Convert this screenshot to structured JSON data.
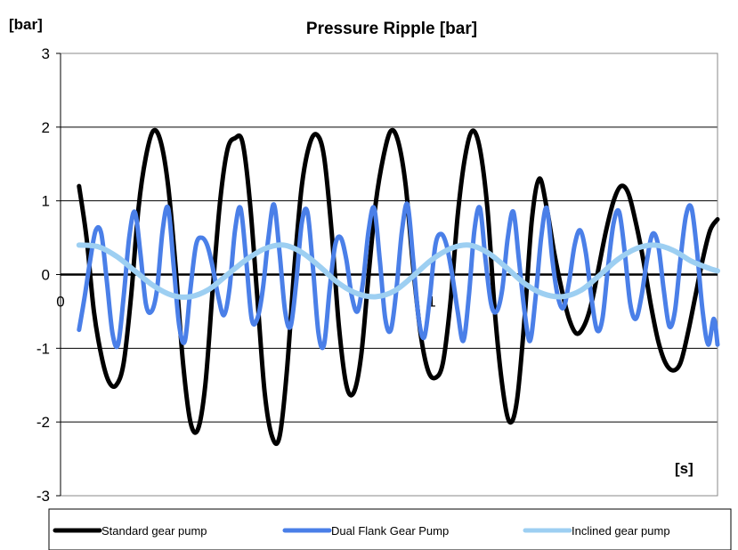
{
  "chart_data": {
    "type": "line",
    "title": "Pressure Ripple [bar]",
    "ylabel": "[bar]",
    "xlabel": "[s]",
    "ylim": [
      -3,
      3
    ],
    "xlim": [
      0,
      1.77
    ],
    "grid": true,
    "legend_placement": "bottom",
    "y_ticks": [
      "3",
      "2",
      "1",
      "0",
      "-1",
      "-2",
      "-3"
    ],
    "x_ticks": [
      {
        "value": 0,
        "label": "0"
      },
      {
        "value": 1,
        "label": "1"
      }
    ],
    "series": [
      {
        "name": "Standard gear pump",
        "color": "#000000",
        "x": [
          0.05,
          0.07,
          0.09,
          0.11,
          0.13,
          0.15,
          0.17,
          0.19,
          0.21,
          0.23,
          0.25,
          0.27,
          0.29,
          0.31,
          0.33,
          0.35,
          0.37,
          0.39,
          0.41,
          0.43,
          0.45,
          0.47,
          0.49,
          0.51,
          0.53,
          0.55,
          0.57,
          0.59,
          0.61,
          0.63,
          0.65,
          0.67,
          0.69,
          0.71,
          0.73,
          0.75,
          0.77,
          0.79,
          0.81,
          0.83,
          0.85,
          0.87,
          0.89,
          0.91,
          0.93,
          0.95,
          0.97,
          0.99,
          1.01,
          1.03,
          1.05,
          1.07,
          1.09,
          1.11,
          1.13,
          1.15,
          1.17,
          1.19,
          1.21,
          1.23,
          1.25,
          1.27,
          1.29,
          1.31,
          1.33,
          1.35,
          1.37,
          1.39,
          1.41,
          1.43,
          1.45,
          1.47,
          1.49,
          1.51,
          1.53,
          1.55,
          1.57,
          1.59,
          1.61,
          1.63,
          1.65,
          1.67,
          1.69,
          1.71,
          1.73,
          1.75,
          1.77
        ],
        "y": [
          1.2,
          0.5,
          -0.5,
          -1.1,
          -1.45,
          -1.5,
          -1.2,
          -0.3,
          0.9,
          1.6,
          1.95,
          1.8,
          1.2,
          0.1,
          -1.2,
          -2.0,
          -2.1,
          -1.5,
          -0.2,
          1.0,
          1.7,
          1.85,
          1.8,
          1.0,
          -0.3,
          -1.6,
          -2.2,
          -2.2,
          -1.3,
          0.1,
          1.2,
          1.75,
          1.9,
          1.6,
          0.6,
          -0.7,
          -1.5,
          -1.6,
          -1.1,
          0.0,
          1.0,
          1.6,
          1.95,
          1.8,
          1.2,
          0.1,
          -0.8,
          -1.3,
          -1.4,
          -1.2,
          -0.4,
          0.8,
          1.6,
          1.95,
          1.7,
          0.9,
          -0.5,
          -1.5,
          -2.0,
          -1.7,
          -0.6,
          0.75,
          1.3,
          0.9,
          0.3,
          -0.2,
          -0.6,
          -0.8,
          -0.7,
          -0.4,
          0.1,
          0.6,
          1.0,
          1.2,
          1.1,
          0.7,
          0.2,
          -0.4,
          -0.9,
          -1.2,
          -1.3,
          -1.2,
          -0.8,
          -0.3,
          0.2,
          0.6,
          0.75
        ]
      },
      {
        "name": "Dual Flank Gear Pump",
        "color": "#4a7fe8",
        "x": [
          0.05,
          0.065,
          0.08,
          0.095,
          0.11,
          0.125,
          0.14,
          0.155,
          0.17,
          0.185,
          0.2,
          0.215,
          0.23,
          0.245,
          0.26,
          0.275,
          0.29,
          0.305,
          0.32,
          0.335,
          0.35,
          0.365,
          0.38,
          0.395,
          0.41,
          0.425,
          0.44,
          0.455,
          0.47,
          0.485,
          0.5,
          0.515,
          0.53,
          0.545,
          0.56,
          0.575,
          0.59,
          0.605,
          0.62,
          0.635,
          0.65,
          0.665,
          0.68,
          0.695,
          0.71,
          0.725,
          0.74,
          0.755,
          0.77,
          0.785,
          0.8,
          0.815,
          0.83,
          0.845,
          0.86,
          0.875,
          0.89,
          0.905,
          0.92,
          0.935,
          0.95,
          0.965,
          0.98,
          0.995,
          1.01,
          1.025,
          1.04,
          1.055,
          1.07,
          1.085,
          1.1,
          1.115,
          1.13,
          1.145,
          1.16,
          1.175,
          1.19,
          1.205,
          1.22,
          1.235,
          1.25,
          1.265,
          1.28,
          1.295,
          1.31,
          1.325,
          1.34,
          1.355,
          1.37,
          1.385,
          1.4,
          1.415,
          1.43,
          1.445,
          1.46,
          1.475,
          1.49,
          1.505,
          1.52,
          1.535,
          1.55,
          1.565,
          1.58,
          1.595,
          1.61,
          1.625,
          1.64,
          1.655,
          1.67,
          1.685,
          1.7,
          1.715,
          1.73,
          1.745,
          1.76,
          1.77
        ],
        "y": [
          -0.75,
          -0.3,
          0.2,
          0.6,
          0.55,
          -0.1,
          -0.8,
          -0.95,
          -0.3,
          0.5,
          0.85,
          0.3,
          -0.4,
          -0.5,
          -0.2,
          0.6,
          0.9,
          0.1,
          -0.7,
          -0.9,
          -0.2,
          0.4,
          0.5,
          0.4,
          0.1,
          -0.3,
          -0.55,
          -0.2,
          0.6,
          0.9,
          0.2,
          -0.6,
          -0.6,
          -0.2,
          0.5,
          0.95,
          0.3,
          -0.5,
          -0.7,
          -0.1,
          0.7,
          0.85,
          0.1,
          -0.8,
          -0.95,
          -0.2,
          0.4,
          0.5,
          0.2,
          -0.3,
          -0.5,
          -0.1,
          0.6,
          0.9,
          0.2,
          -0.6,
          -0.75,
          -0.2,
          0.6,
          0.95,
          0.2,
          -0.6,
          -0.85,
          -0.3,
          0.4,
          0.55,
          0.4,
          0.0,
          -0.5,
          -0.9,
          -0.3,
          0.6,
          0.9,
          0.2,
          -0.4,
          -0.5,
          -0.2,
          0.5,
          0.85,
          0.2,
          -0.5,
          -0.9,
          -0.3,
          0.5,
          0.9,
          0.2,
          -0.3,
          -0.45,
          -0.1,
          0.4,
          0.6,
          0.3,
          -0.3,
          -0.75,
          -0.6,
          0.1,
          0.7,
          0.85,
          0.3,
          -0.4,
          -0.6,
          -0.3,
          0.2,
          0.55,
          0.4,
          -0.2,
          -0.7,
          -0.5,
          0.2,
          0.8,
          0.9,
          0.3,
          -0.5,
          -0.95,
          -0.6,
          -0.95
        ]
      },
      {
        "name": "Inclined gear pump",
        "color": "#9dcff2",
        "x": [
          0.05,
          0.1,
          0.15,
          0.2,
          0.25,
          0.3,
          0.35,
          0.4,
          0.45,
          0.5,
          0.55,
          0.6,
          0.65,
          0.7,
          0.75,
          0.8,
          0.85,
          0.9,
          0.95,
          1.0,
          1.05,
          1.1,
          1.15,
          1.2,
          1.25,
          1.3,
          1.35,
          1.4,
          1.45,
          1.5,
          1.55,
          1.6,
          1.65,
          1.7,
          1.75,
          1.77
        ],
        "y": [
          0.4,
          0.38,
          0.25,
          0.05,
          -0.15,
          -0.28,
          -0.3,
          -0.2,
          0.0,
          0.2,
          0.35,
          0.4,
          0.3,
          0.1,
          -0.12,
          -0.26,
          -0.3,
          -0.22,
          -0.02,
          0.2,
          0.35,
          0.4,
          0.3,
          0.1,
          -0.12,
          -0.26,
          -0.3,
          -0.22,
          -0.02,
          0.2,
          0.35,
          0.4,
          0.33,
          0.18,
          0.08,
          0.05
        ]
      }
    ]
  }
}
